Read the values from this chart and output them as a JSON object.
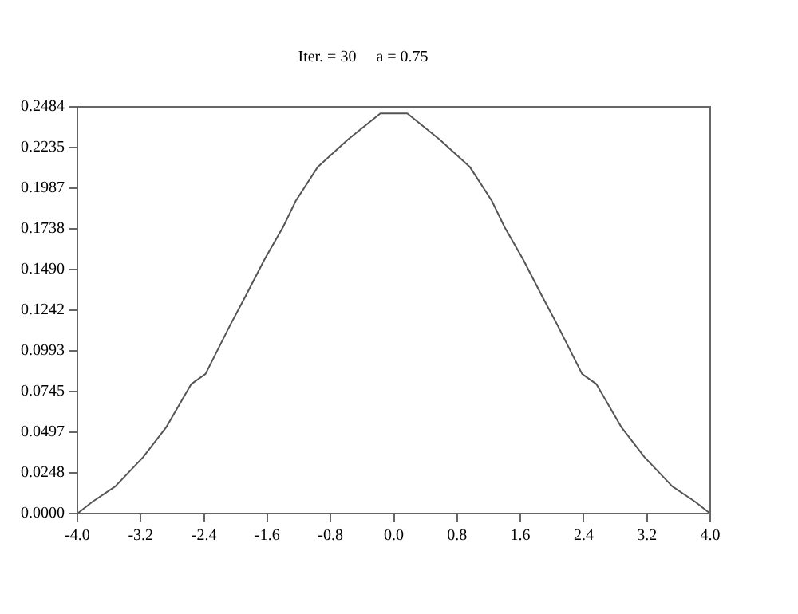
{
  "chart_data": {
    "type": "line",
    "title": "Iter. = 30     a = 0.75",
    "x": [
      -4.0,
      -3.81,
      -3.52,
      -3.17,
      -2.88,
      -2.56,
      -2.38,
      -2.07,
      -1.88,
      -1.63,
      -1.4,
      -1.24,
      -0.96,
      -0.58,
      -0.17,
      0.17,
      0.58,
      0.96,
      1.24,
      1.4,
      1.63,
      1.88,
      2.07,
      2.38,
      2.56,
      2.88,
      3.17,
      3.52,
      3.81,
      4.0
    ],
    "series": [
      {
        "color": "#555555",
        "values": [
          0,
          0.0072,
          0.0166,
          0.0344,
          0.0525,
          0.0791,
          0.0853,
          0.115,
          0.1322,
          0.1556,
          0.175,
          0.1909,
          0.2118,
          0.2284,
          0.2444,
          0.2444,
          0.2284,
          0.2118,
          0.1909,
          0.175,
          0.1556,
          0.1322,
          0.115,
          0.0853,
          0.0791,
          0.0525,
          0.0344,
          0.0166,
          0.0072,
          0
        ]
      }
    ],
    "xlim": [
      -4.0,
      4.0
    ],
    "xticks": [
      {
        "value": -4,
        "label": "-4.0"
      },
      -3.2,
      -2.4,
      -1.6,
      -0.8,
      {
        "value": 0,
        "label": "0.0"
      },
      0.8,
      1.6,
      2.4,
      3.2,
      {
        "value": 4,
        "label": "4.0"
      }
    ],
    "ylim": [
      0,
      0.2484
    ],
    "yticks": [
      {
        "value": 0,
        "label": "0.0000"
      },
      0.0248,
      0.0497,
      0.0745,
      0.0993,
      0.1242,
      {
        "value": 0.149,
        "label": "0.1490"
      },
      0.1738,
      0.1987,
      0.2235,
      0.2484
    ],
    "grid": false,
    "legend": false,
    "marker": "none",
    "line_style": "solid"
  }
}
